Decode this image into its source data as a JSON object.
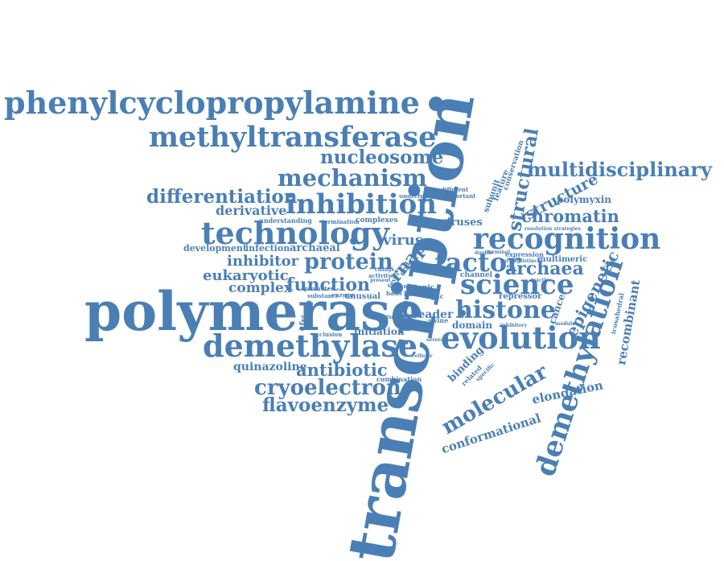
{
  "palette": {
    "word_color": "#4a7fb5",
    "background": "#ffffff"
  },
  "words": {
    "transcription": "transcription",
    "polymerase": "polymerase",
    "phenylcyclopropylamine": "phenylcyclopropylamine",
    "methyltransferase": "methyltransferase",
    "demethylation": "demethylation",
    "demethylase": "demethylase",
    "technology": "technology",
    "recognition": "recognition",
    "evolution": "evolution",
    "inhibition": "inhibition",
    "mechanism": "mechanism",
    "multidisciplinary": "multidisciplinary",
    "nucleosome": "nucleosome",
    "differentiation": "differentiation",
    "science": "science",
    "histone": "histone",
    "protein": "protein",
    "factor": "factor",
    "cryoelectron": "cryoelectron",
    "flavoenzyme": "flavoenzyme",
    "molecular": "molecular",
    "antibiotic": "antibiotic",
    "chromatin": "chromatin",
    "structural": "structural",
    "structure": "structure",
    "archaea": "archaea",
    "recombinant": "recombinant",
    "epigenetic": "epigenetic",
    "function": "function",
    "conformational": "conformational",
    "elongation": "elongation",
    "eukaryotic": "eukaryotic",
    "inhibitor": "inhibitor",
    "complex": "complex",
    "derivative": "derivative",
    "development": "development",
    "infection": "infection",
    "archaeal": "archaeal",
    "quinazoline": "quinazoline",
    "rnap": "rnap",
    "virus": "virus",
    "viruses": "viruses",
    "polymyxin": "polymyxin",
    "multimeric": "multimeric",
    "reader": "reader",
    "domain": "domain",
    "initiation": "initiation",
    "binding": "binding",
    "cancer": "cancer",
    "complexes": "complexes",
    "understanding": "understanding",
    "termination": "termination",
    "subunit": "subunit",
    "feature": "feature",
    "conservation": "conservation",
    "repressor": "repressor",
    "expression": "expression",
    "icosahedral": "icosahedral",
    "combination": "combination",
    "unusual": "unusual",
    "african": "african",
    "occlusion": "occlusion",
    "enzyme": "enzyme",
    "substance": "substance",
    "promoter": "promoter",
    "underlying": "underlying",
    "different": "different",
    "important": "important",
    "cleavage": "cleavage",
    "channel": "channel",
    "topic": "topic",
    "cell": "cell",
    "activity": "activity",
    "npac": "npac",
    "host": "host",
    "basis": "basis",
    "swine": "swine",
    "related": "related",
    "specific": "specific",
    "inhibitory": "inhibitory",
    "cutting": "cutting",
    "resolution_strategies": "resolution strategies",
    "change": "change",
    "fever": "fever",
    "tran": "tran",
    "linker": "linker",
    "present": "present",
    "distinct": "distinct",
    "terminal": "terminal",
    "double": "double",
    "tractive": "tractive",
    "module": "module",
    "cellular": "cellular",
    "several": "several"
  }
}
